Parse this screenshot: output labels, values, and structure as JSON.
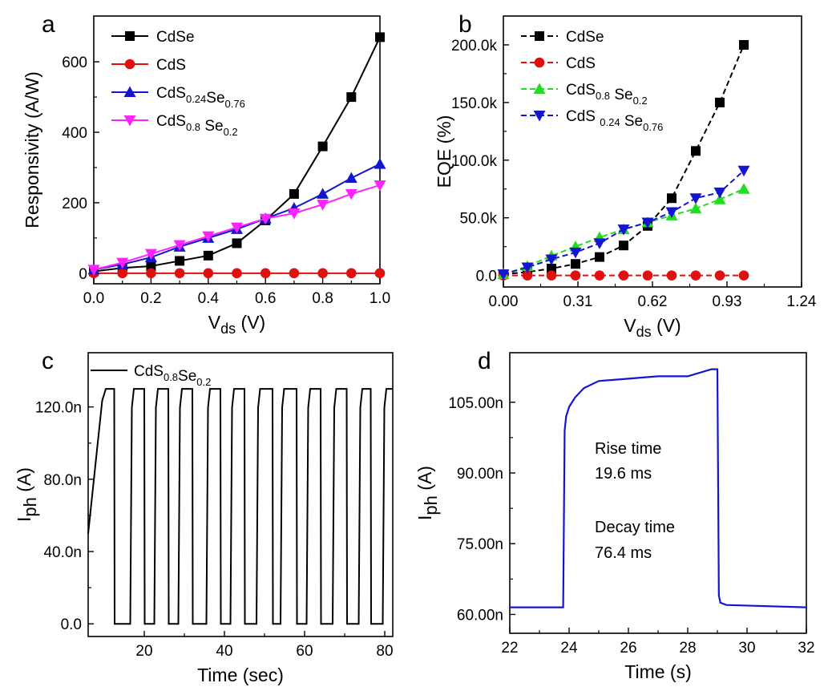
{
  "chart_data": [
    {
      "panel": "a",
      "type": "line",
      "xlabel": "V",
      "xlabel_sub": "ds",
      "xlabel_unit": " (V)",
      "ylabel": "Responsivity (A/W)",
      "xlim": [
        0,
        1.0
      ],
      "ylim": [
        -30,
        730
      ],
      "xticks": [
        "0.0",
        "0.2",
        "0.4",
        "0.6",
        "0.8",
        "1.0"
      ],
      "xtick_values": [
        0,
        0.2,
        0.4,
        0.6,
        0.8,
        1.0
      ],
      "yticks": [
        "0",
        "200",
        "400",
        "600"
      ],
      "ytick_values": [
        0,
        200,
        400,
        600
      ],
      "legend_position": "top-left",
      "x": [
        0,
        0.1,
        0.2,
        0.3,
        0.4,
        0.5,
        0.6,
        0.7,
        0.8,
        0.9,
        1.0
      ],
      "series": [
        {
          "name": "CdSe",
          "label_parts": [
            [
              "CdSe",
              ""
            ]
          ],
          "color": "#000000",
          "marker": "square",
          "values": [
            5,
            15,
            20,
            35,
            50,
            85,
            150,
            225,
            360,
            500,
            670
          ]
        },
        {
          "name": "CdS",
          "label_parts": [
            [
              "CdS",
              ""
            ]
          ],
          "color": "#e01010",
          "marker": "circle",
          "values": [
            0,
            0,
            0,
            0,
            0,
            0,
            0,
            0,
            0,
            0,
            0
          ]
        },
        {
          "name": "CdS0.24Se0.76",
          "label_parts": [
            [
              "CdS",
              "0.24"
            ],
            [
              "Se",
              "0.76"
            ]
          ],
          "color": "#1515d0",
          "marker": "triangle-up",
          "values": [
            10,
            25,
            45,
            75,
            100,
            125,
            155,
            185,
            225,
            270,
            310
          ]
        },
        {
          "name": "CdS0.8 Se0.2",
          "label_parts": [
            [
              "CdS",
              "0.8"
            ],
            [
              " Se",
              "0.2"
            ]
          ],
          "color": "#ff22ff",
          "marker": "triangle-down",
          "values": [
            10,
            30,
            55,
            80,
            105,
            130,
            155,
            170,
            195,
            225,
            250
          ]
        }
      ]
    },
    {
      "panel": "b",
      "type": "line",
      "xlabel": "V",
      "xlabel_sub": "ds",
      "xlabel_unit": " (V)",
      "ylabel": "EQE (%)",
      "xlim": [
        0,
        1.24
      ],
      "ylim": [
        -10000,
        225000
      ],
      "xticks": [
        "0.00",
        "0.31",
        "0.62",
        "0.93",
        "1.24"
      ],
      "xtick_values": [
        0,
        0.31,
        0.62,
        0.93,
        1.24
      ],
      "yticks": [
        "0.0",
        "50.0k",
        "100.0k",
        "150.0k",
        "200.0k"
      ],
      "ytick_values": [
        0,
        50000,
        100000,
        150000,
        200000
      ],
      "legend_position": "top-left",
      "x": [
        0,
        0.1,
        0.2,
        0.3,
        0.4,
        0.5,
        0.6,
        0.7,
        0.8,
        0.9,
        1.0
      ],
      "series": [
        {
          "name": "CdSe",
          "label_parts": [
            [
              "CdSe",
              ""
            ]
          ],
          "color": "#000000",
          "marker": "square",
          "values": [
            1000,
            3000,
            6000,
            10000,
            16000,
            26000,
            43000,
            67000,
            108000,
            150000,
            200000
          ]
        },
        {
          "name": "CdS",
          "label_parts": [
            [
              "CdS",
              ""
            ]
          ],
          "color": "#e01010",
          "marker": "circle",
          "values": [
            0,
            0,
            0,
            0,
            0,
            0,
            0,
            0,
            0,
            0,
            0
          ]
        },
        {
          "name": "CdS0.8 Se0.2",
          "label_parts": [
            [
              "CdS",
              "0.8"
            ],
            [
              " Se",
              "0.2"
            ]
          ],
          "color": "#22dd22",
          "marker": "triangle-up",
          "values": [
            1000,
            8000,
            17000,
            25000,
            33000,
            40000,
            46000,
            52000,
            58000,
            66000,
            75000
          ]
        },
        {
          "name": "CdS0.24 Se0.76",
          "label_parts": [
            [
              "CdS ",
              "0.24"
            ],
            [
              " Se",
              "0.76"
            ]
          ],
          "color": "#1515d0",
          "marker": "triangle-down",
          "values": [
            1000,
            7000,
            14000,
            20000,
            28000,
            40000,
            46000,
            55000,
            67000,
            72000,
            91000
          ]
        }
      ]
    },
    {
      "panel": "c",
      "type": "line",
      "xlabel": "Time (sec)",
      "ylabel": "I",
      "ylabel_sub": "ph",
      "ylabel_unit": " (A)",
      "xlim": [
        6,
        82
      ],
      "ylim": [
        -7e-09,
        1.5e-07
      ],
      "xticks": [
        "20",
        "40",
        "60",
        "80"
      ],
      "xtick_values": [
        20,
        40,
        60,
        80
      ],
      "yticks": [
        "0.0",
        "40.0n",
        "80.0n",
        "120.0n"
      ],
      "ytick_values": [
        0,
        4e-08,
        8e-08,
        1.2e-07
      ],
      "legend_position": "top-left",
      "series": [
        {
          "name": "CdS0.8Se0.2",
          "label_parts": [
            [
              "CdS",
              "0.8"
            ],
            [
              "Se",
              "0.2"
            ]
          ],
          "color": "#000000",
          "on_level": 1.3e-07,
          "off_level": 0,
          "ramp_start": [
            6,
            5e-08
          ],
          "on_intervals": [
            [
              9.5,
              12.5
            ],
            [
              16.5,
              20
            ],
            [
              22.5,
              26
            ],
            [
              28.5,
              32
            ],
            [
              35.5,
              39
            ],
            [
              41.5,
              45
            ],
            [
              48,
              52
            ],
            [
              54,
              58
            ],
            [
              60.5,
              64
            ],
            [
              67,
              70.5
            ],
            [
              73.5,
              76.5
            ],
            [
              79.5,
              82
            ]
          ]
        }
      ]
    },
    {
      "panel": "d",
      "type": "line",
      "xlabel": "Time (s)",
      "ylabel": "I",
      "ylabel_sub": "ph",
      "ylabel_unit": " (A)",
      "xlim": [
        22,
        32
      ],
      "ylim": [
        5.6e-08,
        1.155e-07
      ],
      "xticks": [
        "22",
        "24",
        "26",
        "28",
        "30",
        "32"
      ],
      "xtick_values": [
        22,
        24,
        26,
        28,
        30,
        32
      ],
      "yticks": [
        "60.00n",
        "75.00n",
        "90.00n",
        "105.00n"
      ],
      "ytick_values": [
        6e-08,
        7.5e-08,
        9e-08,
        1.05e-07
      ],
      "series": [
        {
          "name": "",
          "color": "#1515d0",
          "x": [
            22,
            23.8,
            23.85,
            23.9,
            24.0,
            24.2,
            24.5,
            25,
            26,
            27,
            28,
            28.8,
            29.0,
            29.05,
            29.1,
            29.3,
            32
          ],
          "values": [
            6.15e-08,
            6.15e-08,
            9.9e-08,
            1.02e-07,
            1.04e-07,
            1.06e-07,
            1.08e-07,
            1.095e-07,
            1.1e-07,
            1.105e-07,
            1.105e-07,
            1.12e-07,
            1.12e-07,
            6.4e-08,
            6.25e-08,
            6.2e-08,
            6.15e-08
          ]
        }
      ],
      "annotations": {
        "rise_label": "Rise time",
        "rise_value": "19.6 ms",
        "decay_label": "Decay time",
        "decay_value": "76.4 ms",
        "value_color": "#1515d0"
      }
    }
  ],
  "panel_letters": [
    "a",
    "b",
    "c",
    "d"
  ]
}
